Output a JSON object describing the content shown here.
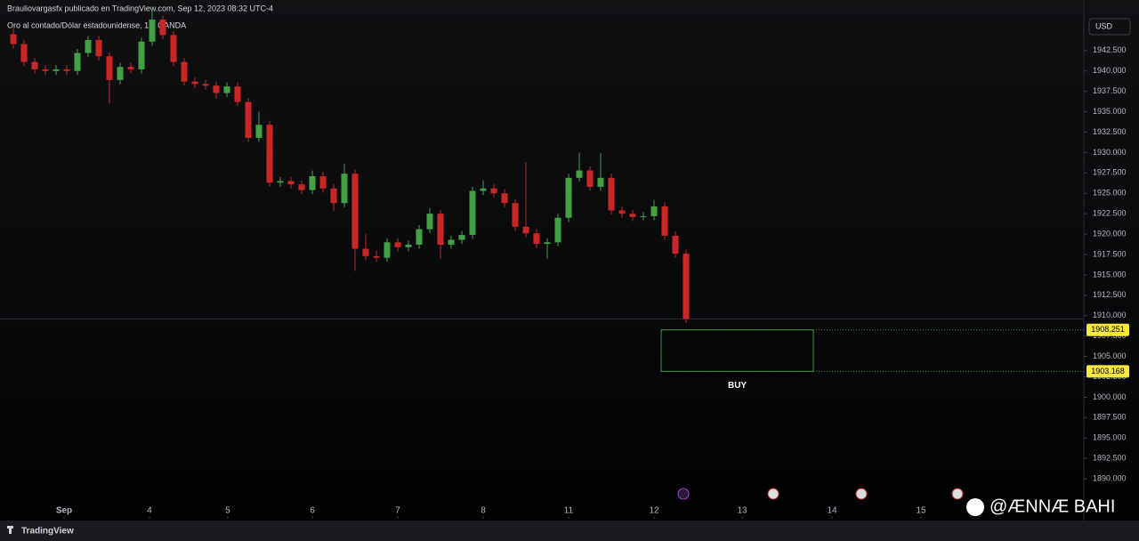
{
  "header": {
    "publisher": "Brauliovargasfx publicado en TradingView.com, Sep 12, 2023 08:32 UTC-4",
    "brand": "TradingView",
    "watermark": "@ÆNNÆ BAHI"
  },
  "chart_data": {
    "type": "candlestick",
    "title": "Oro al contado/Dólar estadounidense, 1h, OANDA",
    "currency": "USD",
    "up_color": "#43a047",
    "down_color": "#c62828",
    "ohlc": [
      [
        1944.5,
        1945.2,
        1942.8,
        1943.3
      ],
      [
        1943.3,
        1943.8,
        1940.6,
        1941.1
      ],
      [
        1941.1,
        1941.6,
        1939.7,
        1940.2
      ],
      [
        1940.2,
        1940.7,
        1939.5,
        1940.0
      ],
      [
        1940.0,
        1940.7,
        1939.5,
        1940.2
      ],
      [
        1940.2,
        1940.7,
        1939.5,
        1940.0
      ],
      [
        1940.0,
        1942.7,
        1939.5,
        1942.2
      ],
      [
        1942.2,
        1944.3,
        1941.7,
        1943.8
      ],
      [
        1943.8,
        1944.3,
        1941.3,
        1941.8
      ],
      [
        1941.8,
        1942.3,
        1936.0,
        1938.9
      ],
      [
        1938.9,
        1941.0,
        1938.4,
        1940.5
      ],
      [
        1940.5,
        1941.0,
        1939.7,
        1940.2
      ],
      [
        1940.2,
        1944.1,
        1939.7,
        1943.6
      ],
      [
        1943.6,
        1947.5,
        1943.1,
        1946.3
      ],
      [
        1946.3,
        1946.8,
        1943.9,
        1944.4
      ],
      [
        1944.4,
        1944.9,
        1940.6,
        1941.1
      ],
      [
        1941.1,
        1941.6,
        1938.2,
        1938.7
      ],
      [
        1938.7,
        1939.2,
        1937.9,
        1938.4
      ],
      [
        1938.4,
        1938.9,
        1937.7,
        1938.2
      ],
      [
        1938.2,
        1938.7,
        1936.6,
        1937.3
      ],
      [
        1937.3,
        1938.6,
        1936.8,
        1938.1
      ],
      [
        1938.1,
        1938.6,
        1935.7,
        1936.2
      ],
      [
        1936.2,
        1936.7,
        1931.3,
        1931.8
      ],
      [
        1931.8,
        1935.0,
        1931.3,
        1933.4
      ],
      [
        1933.4,
        1933.9,
        1925.8,
        1926.3
      ],
      [
        1926.3,
        1927.0,
        1925.8,
        1926.5
      ],
      [
        1926.5,
        1927.0,
        1925.6,
        1926.1
      ],
      [
        1926.1,
        1926.6,
        1924.9,
        1925.4
      ],
      [
        1925.4,
        1927.8,
        1924.9,
        1927.1
      ],
      [
        1927.1,
        1927.6,
        1925.1,
        1925.6
      ],
      [
        1925.6,
        1926.1,
        1922.8,
        1923.8
      ],
      [
        1923.8,
        1928.6,
        1923.3,
        1927.4
      ],
      [
        1927.4,
        1927.9,
        1915.5,
        1918.2
      ],
      [
        1918.2,
        1920.0,
        1916.8,
        1917.3
      ],
      [
        1917.3,
        1918.0,
        1916.6,
        1917.1
      ],
      [
        1917.1,
        1919.5,
        1916.6,
        1919.0
      ],
      [
        1919.0,
        1919.5,
        1917.9,
        1918.4
      ],
      [
        1918.4,
        1919.2,
        1917.9,
        1918.7
      ],
      [
        1918.7,
        1921.1,
        1918.2,
        1920.6
      ],
      [
        1920.6,
        1923.2,
        1920.1,
        1922.5
      ],
      [
        1922.5,
        1923.0,
        1917.0,
        1918.7
      ],
      [
        1918.7,
        1919.8,
        1918.2,
        1919.3
      ],
      [
        1919.3,
        1920.4,
        1918.8,
        1919.9
      ],
      [
        1919.9,
        1925.8,
        1919.4,
        1925.3
      ],
      [
        1925.3,
        1926.6,
        1924.8,
        1925.6
      ],
      [
        1925.6,
        1926.1,
        1924.5,
        1925.0
      ],
      [
        1925.0,
        1925.5,
        1923.3,
        1923.8
      ],
      [
        1923.8,
        1924.3,
        1920.4,
        1920.9
      ],
      [
        1920.9,
        1928.8,
        1919.6,
        1920.1
      ],
      [
        1920.1,
        1920.6,
        1918.3,
        1918.8
      ],
      [
        1918.8,
        1919.5,
        1917.0,
        1919.0
      ],
      [
        1919.0,
        1922.5,
        1918.5,
        1922.0
      ],
      [
        1922.0,
        1927.4,
        1921.5,
        1926.9
      ],
      [
        1926.9,
        1930.0,
        1926.4,
        1927.8
      ],
      [
        1927.8,
        1928.3,
        1925.3,
        1925.8
      ],
      [
        1925.8,
        1929.9,
        1925.3,
        1926.9
      ],
      [
        1926.9,
        1927.4,
        1922.4,
        1922.9
      ],
      [
        1922.9,
        1923.4,
        1922.0,
        1922.5
      ],
      [
        1922.5,
        1923.0,
        1921.6,
        1922.1
      ],
      [
        1922.1,
        1922.7,
        1921.7,
        1922.2
      ],
      [
        1922.2,
        1924.2,
        1921.7,
        1923.4
      ],
      [
        1923.4,
        1923.9,
        1919.3,
        1919.8
      ],
      [
        1919.8,
        1920.3,
        1917.1,
        1917.6
      ],
      [
        1917.6,
        1918.1,
        1909.1,
        1909.6
      ]
    ],
    "xlim": [
      -1.25,
      100.25
    ],
    "xticks": [
      {
        "value": 4.75,
        "label": "Sep"
      },
      {
        "value": 12.75,
        "label": "4"
      },
      {
        "value": 20.08,
        "label": "5"
      },
      {
        "value": 28,
        "label": "6"
      },
      {
        "value": 36,
        "label": "7"
      },
      {
        "value": 44,
        "label": "8"
      },
      {
        "value": 52,
        "label": "11"
      },
      {
        "value": 60,
        "label": "12"
      },
      {
        "value": 68.25,
        "label": "13"
      },
      {
        "value": 76.67,
        "label": "14"
      },
      {
        "value": 85,
        "label": "15"
      }
    ],
    "ylim": [
      1885.1,
      1948.7
    ],
    "yticks": [
      {
        "value": 1890,
        "label": "1890.000"
      },
      {
        "value": 1892.5,
        "label": "1892.500"
      },
      {
        "value": 1895,
        "label": "1895.000"
      },
      {
        "value": 1897.5,
        "label": "1897.500"
      },
      {
        "value": 1900,
        "label": "1900.000"
      },
      {
        "value": 1902.5,
        "label": "1902.500"
      },
      {
        "value": 1905,
        "label": "1905.000"
      },
      {
        "value": 1907.5,
        "label": "1907.500"
      },
      {
        "value": 1910,
        "label": "1910.000"
      },
      {
        "value": 1912.5,
        "label": "1912.500"
      },
      {
        "value": 1915,
        "label": "1915.000"
      },
      {
        "value": 1917.5,
        "label": "1917.500"
      },
      {
        "value": 1920,
        "label": "1920.000"
      },
      {
        "value": 1922.5,
        "label": "1922.500"
      },
      {
        "value": 1925,
        "label": "1925.000"
      },
      {
        "value": 1927.5,
        "label": "1927.500"
      },
      {
        "value": 1930,
        "label": "1930.000"
      },
      {
        "value": 1932.5,
        "label": "1932.500"
      },
      {
        "value": 1935,
        "label": "1935.000"
      },
      {
        "value": 1937.5,
        "label": "1937.500"
      },
      {
        "value": 1940,
        "label": "1940.000"
      },
      {
        "value": 1942.5,
        "label": "1942.500"
      }
    ],
    "zone": {
      "label": "BUY",
      "top": 1908.251,
      "bottom": 1903.168,
      "x_start": 60.67,
      "x_end": 74.92,
      "color": "#3c9a3c"
    }
  }
}
